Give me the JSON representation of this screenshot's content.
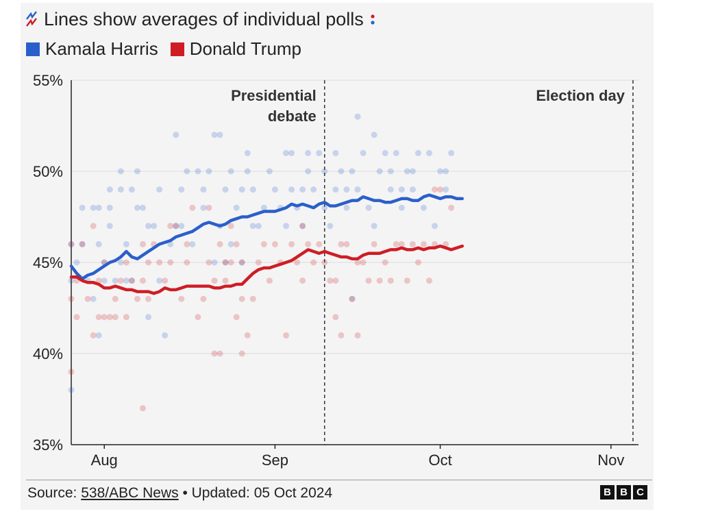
{
  "subtitle": "Lines show averages of individual polls",
  "icon_semantic": "chart-trend-icon",
  "legend": [
    {
      "label": "Kamala Harris",
      "color": "#2a5fcb"
    },
    {
      "label": "Donald Trump",
      "color": "#ce1d25"
    }
  ],
  "source_prefix": "Source: ",
  "source_link": "538/ABC News",
  "source_suffix": " • Updated: 05 Oct 2024",
  "logo_text": [
    "B",
    "B",
    "C"
  ],
  "chart_data": {
    "type": "line",
    "title": "Lines show averages of individual polls",
    "xlabel": "",
    "ylabel": "",
    "ylim": [
      35,
      55
    ],
    "xlim": [
      -6,
      97
    ],
    "x_unit": "days since 1 Aug 2024",
    "yticks": [
      35,
      40,
      45,
      50,
      55
    ],
    "ytick_labels": [
      "35%",
      "40%",
      "45%",
      "50%",
      "55%"
    ],
    "xticks": [
      0,
      31,
      61,
      92
    ],
    "xtick_labels": [
      "Aug",
      "Sep",
      "Oct",
      "Nov"
    ],
    "annotations": [
      {
        "label_lines": [
          "Presidential",
          "debate"
        ],
        "x": 40
      },
      {
        "label_lines": [
          "Election day"
        ],
        "x": 96
      }
    ],
    "series": [
      {
        "name": "Kamala Harris",
        "color": "#2a5fcb",
        "x": [
          -6,
          -5,
          -4,
          -3,
          -2,
          -1,
          0,
          1,
          2,
          3,
          4,
          5,
          6,
          7,
          8,
          9,
          10,
          11,
          12,
          13,
          14,
          15,
          16,
          17,
          18,
          19,
          20,
          21,
          22,
          23,
          24,
          25,
          26,
          27,
          28,
          29,
          30,
          31,
          32,
          33,
          34,
          35,
          36,
          37,
          38,
          39,
          40,
          41,
          42,
          43,
          44,
          45,
          46,
          47,
          48,
          49,
          50,
          51,
          52,
          53,
          54,
          55,
          56,
          57,
          58,
          59,
          60,
          61,
          62,
          63,
          64,
          65
        ],
        "values": [
          44.8,
          44.4,
          44.1,
          44.3,
          44.4,
          44.6,
          44.8,
          45.0,
          45.1,
          45.3,
          45.6,
          45.3,
          45.2,
          45.4,
          45.6,
          45.8,
          46.0,
          46.1,
          46.2,
          46.4,
          46.5,
          46.6,
          46.7,
          46.9,
          47.1,
          47.2,
          47.1,
          47.0,
          47.1,
          47.3,
          47.4,
          47.5,
          47.5,
          47.6,
          47.7,
          47.8,
          47.8,
          47.8,
          47.9,
          48.0,
          48.2,
          48.1,
          48.2,
          48.1,
          48.0,
          48.2,
          48.3,
          48.1,
          48.1,
          48.2,
          48.3,
          48.4,
          48.4,
          48.6,
          48.5,
          48.4,
          48.4,
          48.3,
          48.3,
          48.4,
          48.5,
          48.5,
          48.4,
          48.4,
          48.6,
          48.7,
          48.6,
          48.5,
          48.6,
          48.6,
          48.5,
          48.5
        ]
      },
      {
        "name": "Donald Trump",
        "color": "#ce1d25",
        "x": [
          -6,
          -5,
          -4,
          -3,
          -2,
          -1,
          0,
          1,
          2,
          3,
          4,
          5,
          6,
          7,
          8,
          9,
          10,
          11,
          12,
          13,
          14,
          15,
          16,
          17,
          18,
          19,
          20,
          21,
          22,
          23,
          24,
          25,
          26,
          27,
          28,
          29,
          30,
          31,
          32,
          33,
          34,
          35,
          36,
          37,
          38,
          39,
          40,
          41,
          42,
          43,
          44,
          45,
          46,
          47,
          48,
          49,
          50,
          51,
          52,
          53,
          54,
          55,
          56,
          57,
          58,
          59,
          60,
          61,
          62,
          63,
          64,
          65
        ],
        "values": [
          44.2,
          44.2,
          44.0,
          43.9,
          43.9,
          43.8,
          43.6,
          43.6,
          43.7,
          43.6,
          43.5,
          43.5,
          43.4,
          43.4,
          43.4,
          43.3,
          43.4,
          43.6,
          43.5,
          43.5,
          43.6,
          43.7,
          43.7,
          43.7,
          43.7,
          43.7,
          43.6,
          43.6,
          43.7,
          43.7,
          43.8,
          43.8,
          44.1,
          44.4,
          44.6,
          44.7,
          44.7,
          44.8,
          44.9,
          45.0,
          45.1,
          45.3,
          45.5,
          45.7,
          45.6,
          45.5,
          45.6,
          45.5,
          45.4,
          45.3,
          45.3,
          45.2,
          45.2,
          45.4,
          45.5,
          45.5,
          45.5,
          45.6,
          45.7,
          45.7,
          45.8,
          45.7,
          45.7,
          45.8,
          45.7,
          45.8,
          45.8,
          45.9,
          45.8,
          45.7,
          45.8,
          45.9
        ]
      }
    ],
    "polls": {
      "Kamala Harris": [
        [
          -6,
          46
        ],
        [
          -6,
          44
        ],
        [
          -6,
          38
        ],
        [
          -5,
          45
        ],
        [
          -4,
          48
        ],
        [
          -4,
          46
        ],
        [
          -3,
          44
        ],
        [
          -2,
          43
        ],
        [
          -2,
          48
        ],
        [
          -1,
          46
        ],
        [
          -1,
          48
        ],
        [
          -1,
          41
        ],
        [
          0,
          45
        ],
        [
          0,
          44
        ],
        [
          1,
          47
        ],
        [
          1,
          48
        ],
        [
          1,
          49
        ],
        [
          2,
          44
        ],
        [
          3,
          45
        ],
        [
          3,
          50
        ],
        [
          3,
          49
        ],
        [
          4,
          44
        ],
        [
          4,
          46
        ],
        [
          5,
          49
        ],
        [
          5,
          44
        ],
        [
          6,
          50
        ],
        [
          6,
          48
        ],
        [
          7,
          48
        ],
        [
          8,
          42
        ],
        [
          8,
          47
        ],
        [
          9,
          47
        ],
        [
          10,
          49
        ],
        [
          10,
          44
        ],
        [
          11,
          41
        ],
        [
          12,
          46
        ],
        [
          13,
          52
        ],
        [
          13,
          47
        ],
        [
          14,
          49
        ],
        [
          14,
          47
        ],
        [
          15,
          50
        ],
        [
          16,
          46
        ],
        [
          17,
          50
        ],
        [
          18,
          49
        ],
        [
          18,
          48
        ],
        [
          19,
          50
        ],
        [
          20,
          45
        ],
        [
          20,
          52
        ],
        [
          21,
          52
        ],
        [
          21,
          47
        ],
        [
          22,
          49
        ],
        [
          22,
          45
        ],
        [
          23,
          50
        ],
        [
          23,
          46
        ],
        [
          24,
          48
        ],
        [
          25,
          49
        ],
        [
          25,
          45
        ],
        [
          26,
          51
        ],
        [
          26,
          50
        ],
        [
          27,
          49
        ],
        [
          27,
          47
        ],
        [
          28,
          47
        ],
        [
          29,
          48
        ],
        [
          30,
          50
        ],
        [
          31,
          49
        ],
        [
          32,
          48
        ],
        [
          33,
          51
        ],
        [
          33,
          47
        ],
        [
          34,
          51
        ],
        [
          34,
          49
        ],
        [
          35,
          48
        ],
        [
          36,
          49
        ],
        [
          36,
          47
        ],
        [
          37,
          50
        ],
        [
          37,
          51
        ],
        [
          38,
          49
        ],
        [
          39,
          51
        ],
        [
          40,
          50
        ],
        [
          40,
          48
        ],
        [
          41,
          47
        ],
        [
          42,
          49
        ],
        [
          42,
          51
        ],
        [
          43,
          50
        ],
        [
          44,
          49
        ],
        [
          44,
          48
        ],
        [
          45,
          50
        ],
        [
          45,
          43
        ],
        [
          46,
          53
        ],
        [
          46,
          49
        ],
        [
          47,
          51
        ],
        [
          48,
          48
        ],
        [
          49,
          52
        ],
        [
          49,
          47
        ],
        [
          50,
          50
        ],
        [
          51,
          51
        ],
        [
          52,
          50
        ],
        [
          52,
          49
        ],
        [
          53,
          51
        ],
        [
          54,
          49
        ],
        [
          54,
          48
        ],
        [
          55,
          50
        ],
        [
          56,
          50
        ],
        [
          56,
          49
        ],
        [
          57,
          51
        ],
        [
          58,
          48
        ],
        [
          59,
          51
        ],
        [
          60,
          47
        ],
        [
          61,
          50
        ],
        [
          62,
          49
        ],
        [
          62,
          50
        ],
        [
          63,
          51
        ]
      ],
      "Donald Trump": [
        [
          -6,
          43
        ],
        [
          -6,
          39
        ],
        [
          -6,
          46
        ],
        [
          -5,
          42
        ],
        [
          -5,
          44
        ],
        [
          -4,
          46
        ],
        [
          -3,
          43
        ],
        [
          -2,
          41
        ],
        [
          -2,
          47
        ],
        [
          -1,
          42
        ],
        [
          -1,
          44
        ],
        [
          0,
          42
        ],
        [
          0,
          45
        ],
        [
          1,
          42
        ],
        [
          2,
          43
        ],
        [
          2,
          42
        ],
        [
          3,
          44
        ],
        [
          4,
          42
        ],
        [
          4,
          45
        ],
        [
          5,
          44
        ],
        [
          6,
          43
        ],
        [
          7,
          44
        ],
        [
          7,
          46
        ],
        [
          7,
          37
        ],
        [
          8,
          45
        ],
        [
          8,
          43
        ],
        [
          9,
          46
        ],
        [
          10,
          45
        ],
        [
          11,
          44
        ],
        [
          12,
          47
        ],
        [
          12,
          45
        ],
        [
          13,
          47
        ],
        [
          14,
          43
        ],
        [
          15,
          46
        ],
        [
          15,
          45
        ],
        [
          16,
          48
        ],
        [
          17,
          42
        ],
        [
          18,
          43
        ],
        [
          19,
          45
        ],
        [
          19,
          48
        ],
        [
          20,
          44
        ],
        [
          20,
          40
        ],
        [
          21,
          46
        ],
        [
          21,
          40
        ],
        [
          22,
          45
        ],
        [
          22,
          44
        ],
        [
          23,
          45
        ],
        [
          23,
          47
        ],
        [
          24,
          42
        ],
        [
          24,
          46
        ],
        [
          25,
          43
        ],
        [
          25,
          40
        ],
        [
          25,
          45
        ],
        [
          26,
          41
        ],
        [
          27,
          43
        ],
        [
          28,
          45
        ],
        [
          29,
          46
        ],
        [
          30,
          44
        ],
        [
          31,
          46
        ],
        [
          32,
          45
        ],
        [
          33,
          41
        ],
        [
          34,
          46
        ],
        [
          35,
          45
        ],
        [
          36,
          47
        ],
        [
          36,
          44
        ],
        [
          37,
          46
        ],
        [
          38,
          45
        ],
        [
          39,
          46
        ],
        [
          40,
          45
        ],
        [
          41,
          44
        ],
        [
          42,
          42
        ],
        [
          42,
          44
        ],
        [
          43,
          46
        ],
        [
          43,
          41
        ],
        [
          44,
          46
        ],
        [
          45,
          43
        ],
        [
          46,
          45
        ],
        [
          46,
          41
        ],
        [
          47,
          45
        ],
        [
          48,
          44
        ],
        [
          49,
          46
        ],
        [
          50,
          44
        ],
        [
          51,
          45
        ],
        [
          52,
          44
        ],
        [
          53,
          46
        ],
        [
          54,
          46
        ],
        [
          55,
          44
        ],
        [
          56,
          46
        ],
        [
          57,
          45
        ],
        [
          58,
          46
        ],
        [
          59,
          44
        ],
        [
          60,
          46
        ],
        [
          60,
          49
        ],
        [
          61,
          49
        ],
        [
          62,
          46
        ],
        [
          63,
          48
        ]
      ]
    }
  }
}
